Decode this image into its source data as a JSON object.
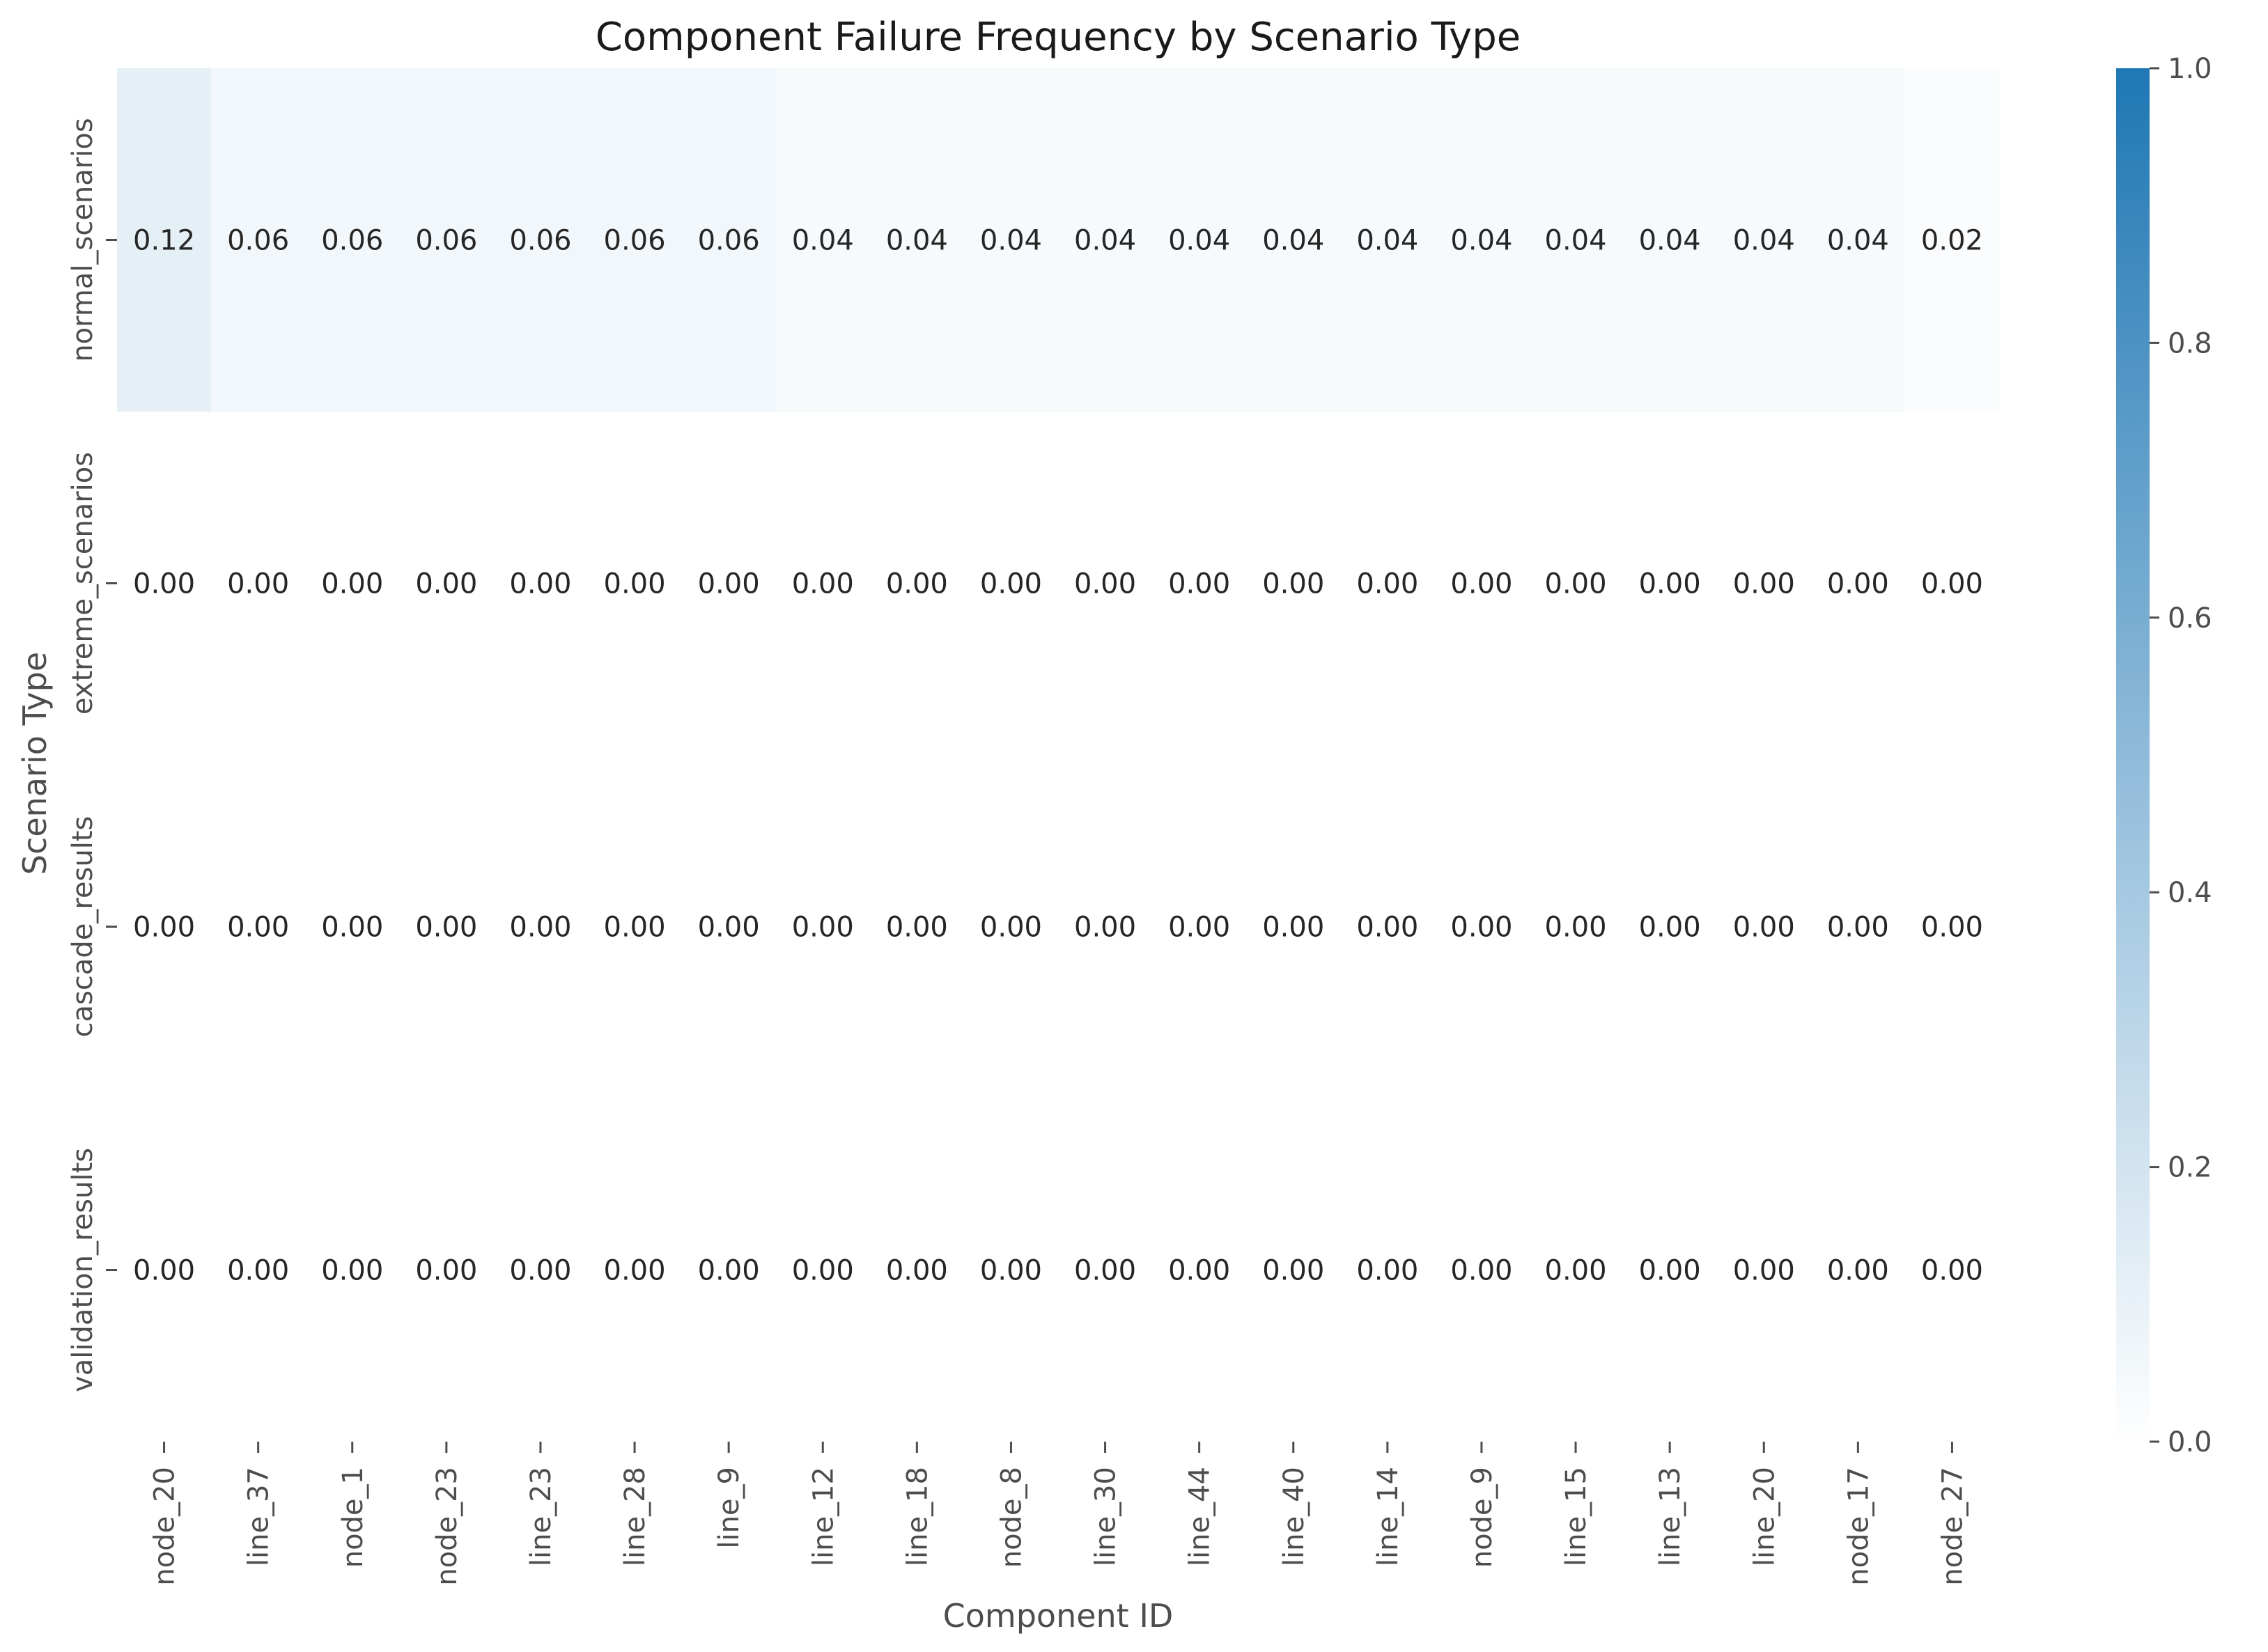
{
  "chart_data": {
    "type": "heatmap",
    "title": "Component Failure Frequency by Scenario Type",
    "xlabel": "Component ID",
    "ylabel": "Scenario Type",
    "columns": [
      "node_20",
      "line_37",
      "node_1",
      "node_23",
      "line_23",
      "line_28",
      "line_9",
      "line_12",
      "line_18",
      "node_8",
      "line_30",
      "line_44",
      "line_40",
      "line_14",
      "node_9",
      "line_15",
      "line_13",
      "line_20",
      "node_17",
      "node_27"
    ],
    "rows": [
      "normal_scenarios",
      "extreme_scenarios",
      "cascade_results",
      "validation_results"
    ],
    "values": [
      [
        0.12,
        0.06,
        0.06,
        0.06,
        0.06,
        0.06,
        0.06,
        0.04,
        0.04,
        0.04,
        0.04,
        0.04,
        0.04,
        0.04,
        0.04,
        0.04,
        0.04,
        0.04,
        0.04,
        0.02
      ],
      [
        0.0,
        0.0,
        0.0,
        0.0,
        0.0,
        0.0,
        0.0,
        0.0,
        0.0,
        0.0,
        0.0,
        0.0,
        0.0,
        0.0,
        0.0,
        0.0,
        0.0,
        0.0,
        0.0,
        0.0
      ],
      [
        0.0,
        0.0,
        0.0,
        0.0,
        0.0,
        0.0,
        0.0,
        0.0,
        0.0,
        0.0,
        0.0,
        0.0,
        0.0,
        0.0,
        0.0,
        0.0,
        0.0,
        0.0,
        0.0,
        0.0
      ],
      [
        0.0,
        0.0,
        0.0,
        0.0,
        0.0,
        0.0,
        0.0,
        0.0,
        0.0,
        0.0,
        0.0,
        0.0,
        0.0,
        0.0,
        0.0,
        0.0,
        0.0,
        0.0,
        0.0,
        0.0
      ]
    ],
    "value_format": "2 decimals",
    "colorbar": {
      "range": [
        0.0,
        1.0
      ],
      "ticks": [
        "0.0",
        "0.2",
        "0.4",
        "0.6",
        "0.8",
        "1.0"
      ],
      "color_low": "#ffffff",
      "color_high": "#1f77b4"
    },
    "grid": false,
    "legend": "colorbar-right"
  }
}
